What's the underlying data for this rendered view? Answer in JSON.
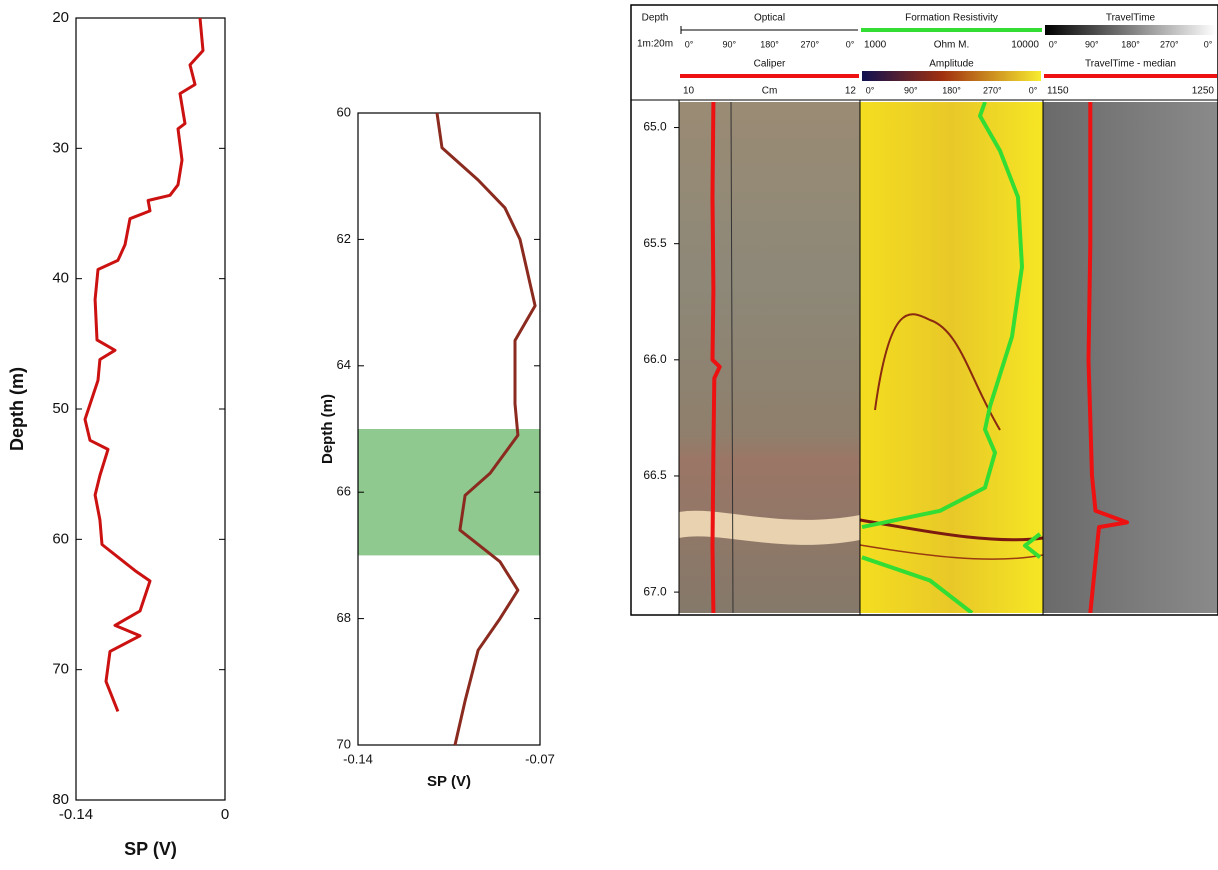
{
  "chart_data": [
    {
      "type": "line",
      "xlabel": "SP (V)",
      "ylabel": "Depth (m)",
      "xlim": [
        -0.14,
        0
      ],
      "xticks": [
        -0.14,
        0
      ],
      "ylim": [
        20,
        80
      ],
      "yticks": [
        20,
        30,
        40,
        50,
        60,
        70,
        80
      ],
      "series": [
        {
          "color": "#cc1111",
          "depth": [
            20,
            22.5,
            23.6,
            25.1,
            25.8,
            28.1,
            28.5,
            30.9,
            32.8,
            33.6,
            34,
            34.8,
            35.4,
            37.4,
            38.6,
            39.3,
            41.6,
            44.7,
            45.5,
            46.2,
            47.8,
            50.8,
            52.4,
            53.1,
            55.1,
            56.6,
            58.5,
            60.4,
            62.4,
            63.2,
            65.5,
            66.6,
            67.4,
            68.6,
            70.9,
            73.2
          ],
          "values": [
            -0.0235,
            -0.0207,
            -0.0329,
            -0.0282,
            -0.0423,
            -0.0376,
            -0.0442,
            -0.0404,
            -0.0442,
            -0.0517,
            -0.0723,
            -0.0705,
            -0.0893,
            -0.094,
            -0.1006,
            -0.1193,
            -0.1221,
            -0.1203,
            -0.1034,
            -0.1175,
            -0.1193,
            -0.1315,
            -0.1268,
            -0.1099,
            -0.1175,
            -0.1221,
            -0.1175,
            -0.1156,
            -0.0846,
            -0.0705,
            -0.0799,
            -0.1034,
            -0.0799,
            -0.1081,
            -0.1118,
            -0.1006
          ]
        }
      ]
    },
    {
      "type": "line",
      "xlabel": "SP (V)",
      "ylabel": "Depth (m)",
      "xlim": [
        -0.14,
        -0.07
      ],
      "xticks": [
        -0.14,
        -0.07
      ],
      "ylim": [
        60,
        70
      ],
      "yticks": [
        60,
        62,
        64,
        66,
        68,
        70
      ],
      "highlight": [
        65,
        67
      ],
      "highlight_color": "#8fc98f",
      "series": [
        {
          "color": "#8b2a1e",
          "depth": [
            60,
            60.55,
            61.06,
            61.5,
            62,
            63.05,
            63.6,
            64.6,
            65.1,
            65.7,
            66.05,
            66.6,
            67.1,
            67.55,
            68,
            68.5,
            69.3,
            70
          ],
          "values": [
            -0.1096,
            -0.1077,
            -0.0938,
            -0.0835,
            -0.0777,
            -0.0719,
            -0.0796,
            -0.0796,
            -0.0785,
            -0.0892,
            -0.0988,
            -0.1008,
            -0.0854,
            -0.0785,
            -0.0854,
            -0.0938,
            -0.0988,
            -0.1027
          ]
        }
      ]
    },
    {
      "type": "well_log",
      "depth_label": "Depth",
      "scale_label": "1m:20m",
      "ylim": [
        64.89,
        67.09
      ],
      "yticks": [
        {
          "value": 65,
          "label": "65.0"
        },
        65.5,
        {
          "value": 66,
          "label": "66.0"
        },
        66.5,
        {
          "value": 67,
          "label": "67.0"
        }
      ],
      "tracks": [
        {
          "image": {
            "name": "Optical",
            "angles": [
              "0°",
              "90°",
              "180°",
              "270°",
              "0°"
            ]
          },
          "curve": {
            "name": "Caliper",
            "unit": "Cm",
            "xlim": [
              10,
              12
            ],
            "color": "#ee1111",
            "on_top": false,
            "depth": [
              64.89,
              65.3,
              65.7,
              66.0,
              66.03,
              66.08,
              66.4,
              66.8,
              67.09
            ],
            "values": [
              10.38,
              10.37,
              10.38,
              10.37,
              10.45,
              10.39,
              10.38,
              10.37,
              10.38
            ]
          }
        },
        {
          "image": {
            "name": "Amplitude",
            "angles": [
              "0°",
              "90°",
              "180°",
              "270°",
              "0°"
            ]
          },
          "curve": {
            "name": "Formation Resistivity",
            "unit": "Ohm M.",
            "xlim": [
              1000,
              10000
            ],
            "color": "#33dd33",
            "on_top": true,
            "depth": [
              64.89,
              64.95,
              65.1,
              65.3,
              65.6,
              65.9,
              66.2,
              66.3,
              66.4,
              66.55,
              66.65,
              66.72,
              null,
              66.75,
              66.8,
              66.85,
              null,
              66.85,
              66.95,
              67.09
            ],
            "values": [
              7148,
              6902,
              7885,
              8770,
              8967,
              8475,
              7393,
              7148,
              7639,
              7148,
              4934,
              1098,
              null,
              9852,
              9115,
              9852,
              null,
              1098,
              4443,
              6508
            ]
          }
        },
        {
          "image": {
            "name": "TravelTime",
            "angles": [
              "0°",
              "90°",
              "180°",
              "270°",
              "0°"
            ]
          },
          "curve": {
            "name": "TravelTime - median",
            "xlim": [
              1150,
              1250
            ],
            "color": "#ee1111",
            "on_top": false,
            "depth": [
              64.89,
              65.5,
              66.0,
              66.5,
              66.65,
              66.7,
              66.72,
              67.09
            ],
            "values": [
              1177,
              1177,
              1176,
              1178,
              1180,
              1198,
              1182,
              1177
            ]
          }
        }
      ]
    }
  ]
}
